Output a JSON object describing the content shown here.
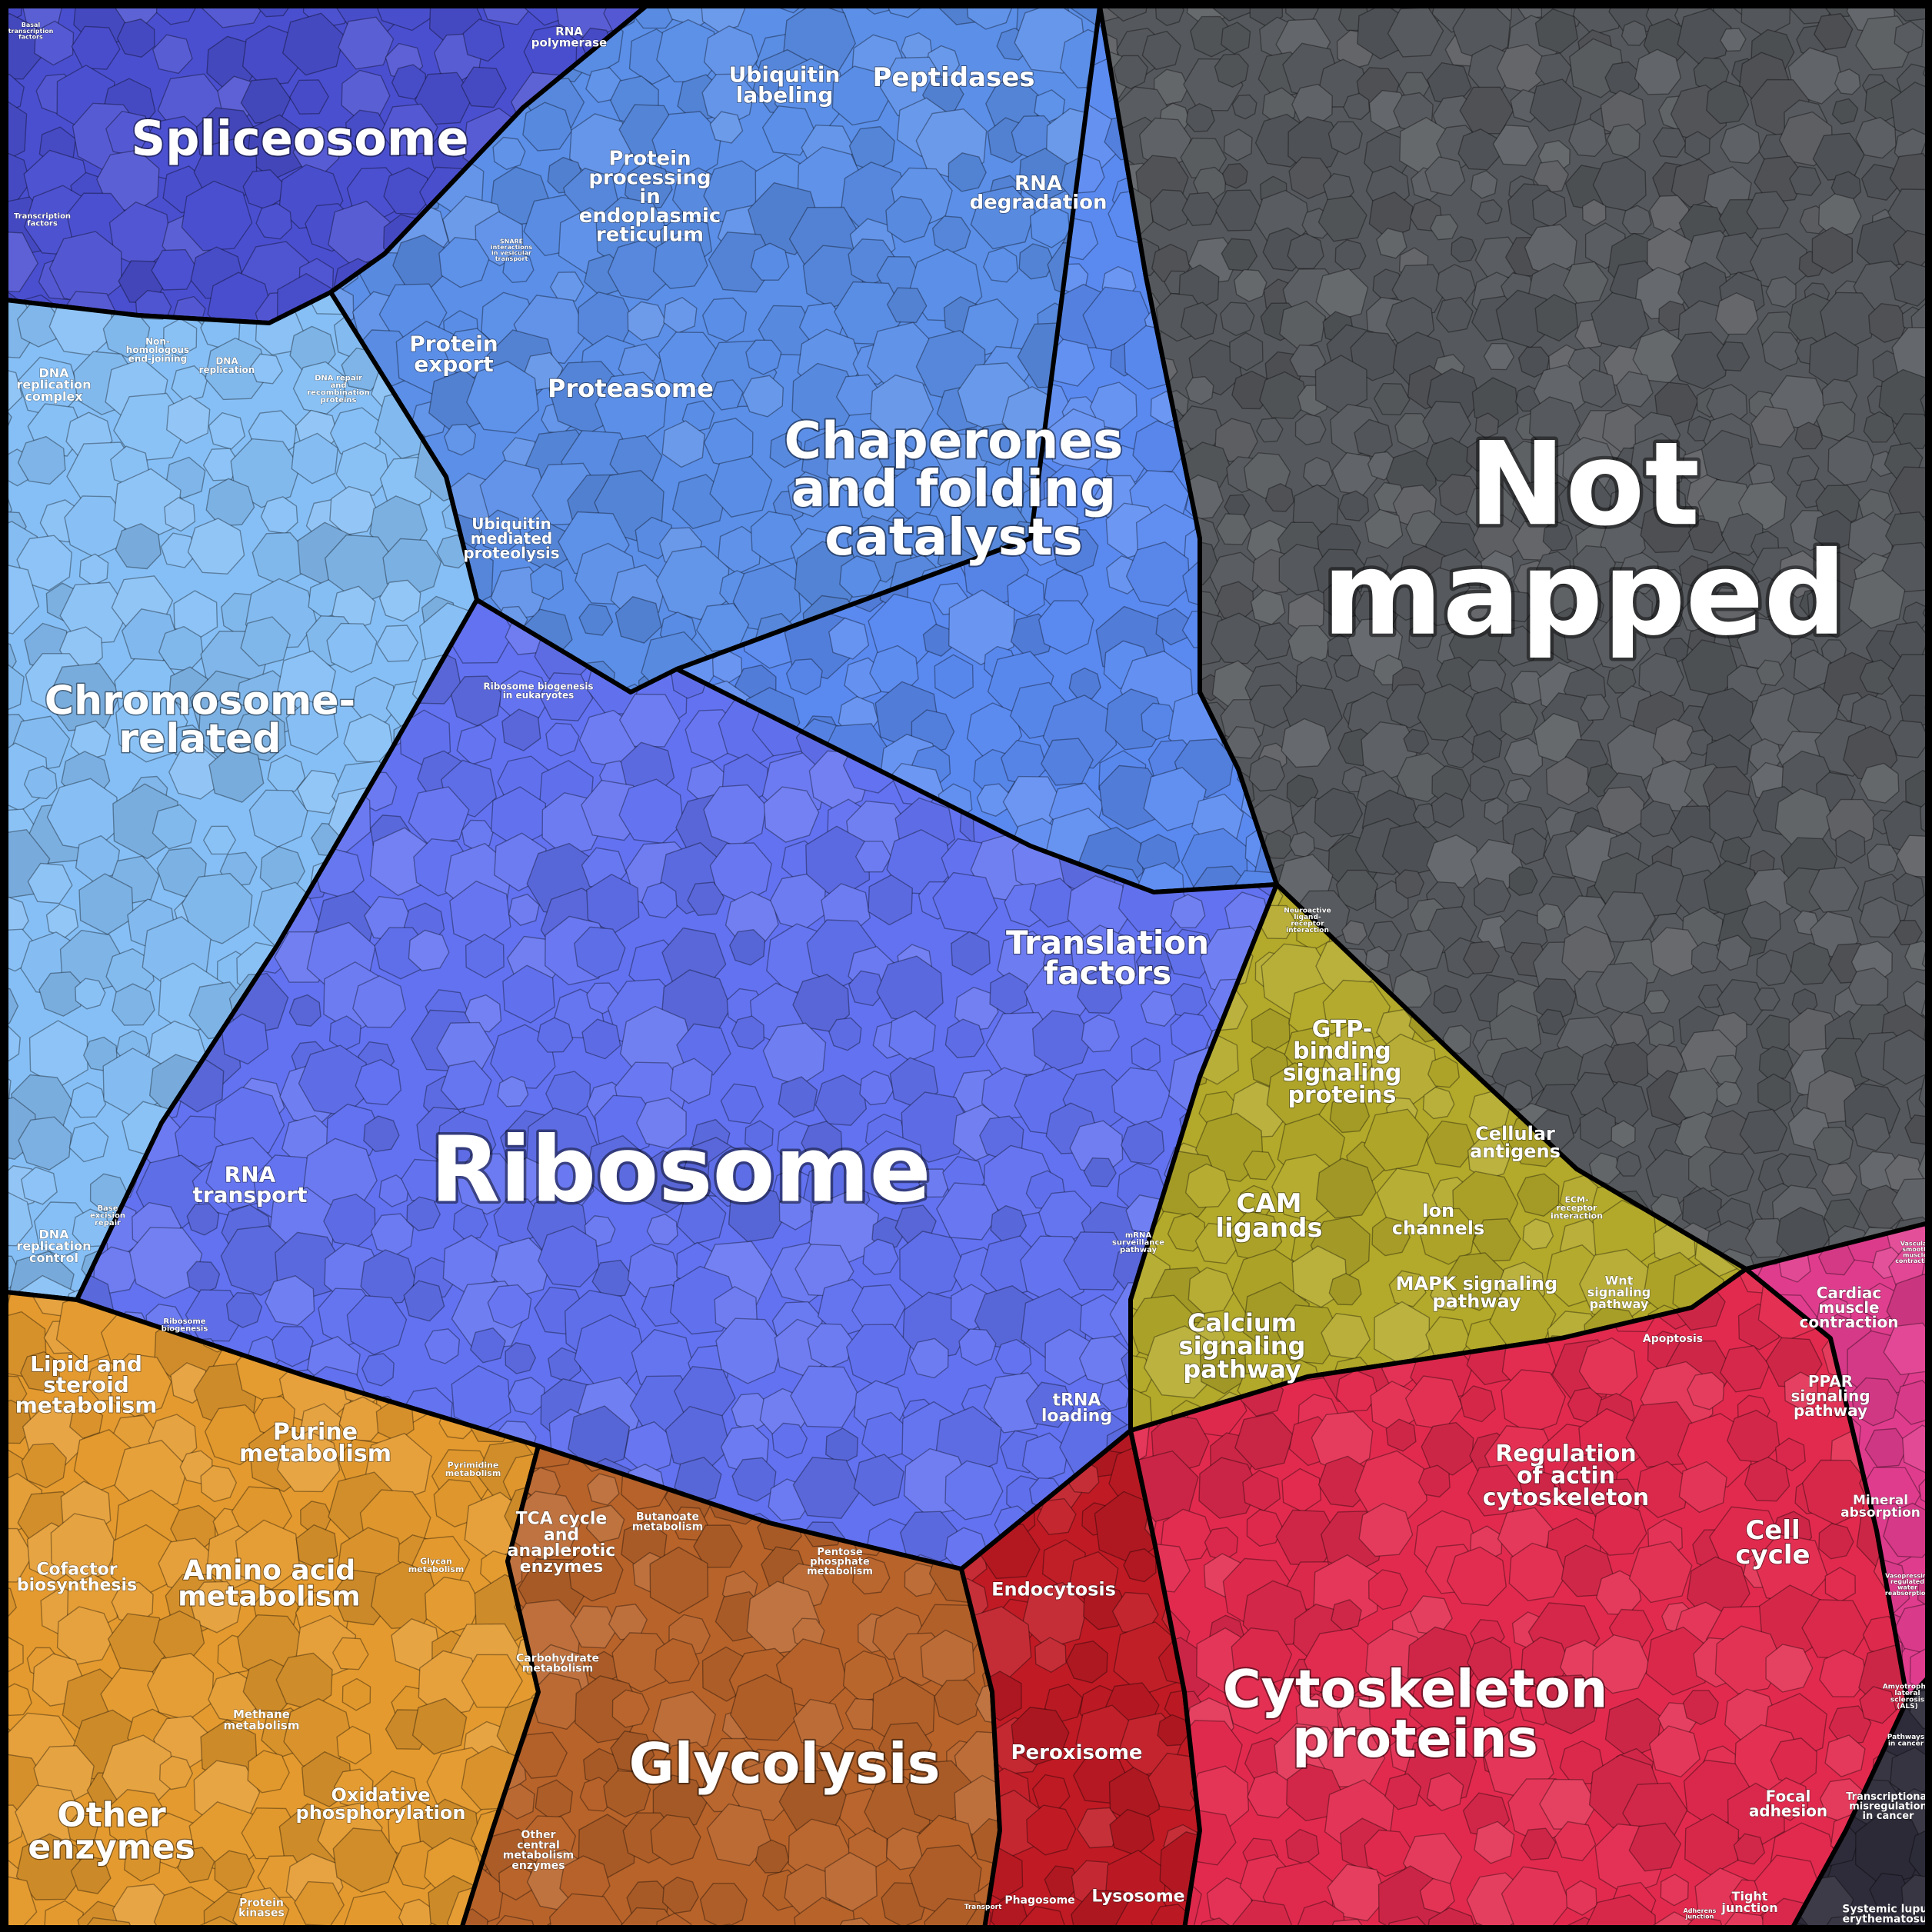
{
  "regions": [
    {
      "key": "spliceosome",
      "color": "#4a4fd0",
      "labels": [
        {
          "text": [
            "Spliceosome"
          ]
        },
        {
          "text": [
            "RNA",
            "polymerase"
          ]
        },
        {
          "text": [
            "Basal",
            "transcription",
            "factors"
          ]
        },
        {
          "text": [
            "Transcription",
            "factors"
          ]
        }
      ]
    },
    {
      "key": "upper-proteins",
      "color": "#5b8fe8",
      "labels": [
        {
          "text": [
            "Ubiquitin",
            "labeling"
          ]
        },
        {
          "text": [
            "Peptidases"
          ]
        },
        {
          "text": [
            "RNA",
            "degradation"
          ]
        },
        {
          "text": [
            "Protein",
            "processing",
            "in",
            "endoplasmic",
            "reticulum"
          ]
        },
        {
          "text": [
            "SNARE",
            "interactions",
            "in vesicular",
            "transport"
          ]
        },
        {
          "text": [
            "Protein",
            "export"
          ]
        },
        {
          "text": [
            "Proteasome"
          ]
        },
        {
          "text": [
            "Ubiquitin",
            "mediated",
            "proteolysis"
          ]
        }
      ]
    },
    {
      "key": "chaperones",
      "color": "#5a8af0",
      "labels": [
        {
          "text": [
            "Chaperones",
            "and folding",
            "catalysts"
          ]
        }
      ]
    },
    {
      "key": "not-mapped",
      "color": "#55585c",
      "labels": [
        {
          "text": [
            "Not",
            "mapped"
          ]
        }
      ]
    },
    {
      "key": "chromosome",
      "color": "#86bff5",
      "labels": [
        {
          "text": [
            "Chromosome-",
            "related"
          ]
        },
        {
          "text": [
            "DNA",
            "replication",
            "complex"
          ]
        },
        {
          "text": [
            "Non-",
            "homologous",
            "end-joining"
          ]
        },
        {
          "text": [
            "DNA",
            "replication"
          ]
        },
        {
          "text": [
            "DNA repair",
            "and",
            "recombination",
            "proteins"
          ]
        },
        {
          "text": [
            "DNA",
            "replication",
            "control"
          ]
        },
        {
          "text": [
            "Base",
            "excision",
            "repair"
          ]
        }
      ]
    },
    {
      "key": "ribosome",
      "color": "#6272f0",
      "labels": [
        {
          "text": [
            "Ribosome"
          ]
        },
        {
          "text": [
            "Ribosome biogenesis",
            "in eukaryotes"
          ]
        },
        {
          "text": [
            "RNA",
            "transport"
          ]
        },
        {
          "text": [
            "Ribosome",
            "biogenesis"
          ]
        },
        {
          "text": [
            "Translation",
            "factors"
          ]
        },
        {
          "text": [
            "mRNA",
            "surveillance",
            "pathway"
          ]
        },
        {
          "text": [
            "tRNA",
            "loading"
          ]
        }
      ]
    },
    {
      "key": "signaling",
      "color": "#b3a92a",
      "labels": [
        {
          "text": [
            "GTP-",
            "binding",
            "signaling",
            "proteins"
          ]
        },
        {
          "text": [
            "Cellular",
            "antigens"
          ]
        },
        {
          "text": [
            "CAM",
            "ligands"
          ]
        },
        {
          "text": [
            "Ion",
            "channels"
          ]
        },
        {
          "text": [
            "ECM-",
            "receptor",
            "interaction"
          ]
        },
        {
          "text": [
            "Neuroactive",
            "ligand-",
            "receptor",
            "interaction"
          ]
        },
        {
          "text": [
            "MAPK signaling",
            "pathway"
          ]
        },
        {
          "text": [
            "Wnt",
            "signaling",
            "pathway"
          ]
        },
        {
          "text": [
            "Calcium",
            "signaling",
            "pathway"
          ]
        }
      ]
    },
    {
      "key": "metabolism",
      "color": "#e49a2e",
      "labels": [
        {
          "text": [
            "Lipid and",
            "steroid",
            "metabolism"
          ]
        },
        {
          "text": [
            "Purine",
            "metabolism"
          ]
        },
        {
          "text": [
            "Pyrimidine",
            "metabolism"
          ]
        },
        {
          "text": [
            "Cofactor",
            "biosynthesis"
          ]
        },
        {
          "text": [
            "Amino acid",
            "metabolism"
          ]
        },
        {
          "text": [
            "Glycan",
            "metabolism"
          ]
        },
        {
          "text": [
            "Other",
            "enzymes"
          ]
        },
        {
          "text": [
            "Methane",
            "metabolism"
          ]
        },
        {
          "text": [
            "Oxidative",
            "phosphorylation"
          ]
        },
        {
          "text": [
            "Protein",
            "kinases"
          ]
        }
      ]
    },
    {
      "key": "carbohydrate",
      "color": "#b8632a",
      "labels": [
        {
          "text": [
            "TCA cycle",
            "and",
            "anaplerotic",
            "enzymes"
          ]
        },
        {
          "text": [
            "Butanoate",
            "metabolism"
          ]
        },
        {
          "text": [
            "Pentose",
            "phosphate",
            "metabolism"
          ]
        },
        {
          "text": [
            "Carbohydrate",
            "metabolism"
          ]
        },
        {
          "text": [
            "Glycolysis"
          ]
        },
        {
          "text": [
            "Other",
            "central",
            "metabolism",
            "enzymes"
          ]
        }
      ]
    },
    {
      "key": "vesicles",
      "color": "#c01a24",
      "labels": [
        {
          "text": [
            "Endocytosis"
          ]
        },
        {
          "text": [
            "Peroxisome"
          ]
        },
        {
          "text": [
            "Phagosome"
          ]
        },
        {
          "text": [
            "Lysosome"
          ]
        },
        {
          "text": [
            "Transport"
          ]
        }
      ]
    },
    {
      "key": "cytoskeleton",
      "color": "#e22a4e",
      "labels": [
        {
          "text": [
            "Cytoskeleton",
            "proteins"
          ]
        },
        {
          "text": [
            "Regulation",
            "of actin",
            "cytoskeleton"
          ]
        },
        {
          "text": [
            "Apoptosis"
          ]
        },
        {
          "text": [
            "Cell",
            "cycle"
          ]
        },
        {
          "text": [
            "Focal",
            "adhesion"
          ]
        },
        {
          "text": [
            "Tight",
            "junction"
          ]
        },
        {
          "text": [
            "Adherens",
            "junction"
          ]
        }
      ]
    },
    {
      "key": "pink",
      "color": "#e03c8e",
      "labels": [
        {
          "text": [
            "Cardiac",
            "muscle",
            "contraction"
          ]
        },
        {
          "text": [
            "PPAR",
            "signaling",
            "pathway"
          ]
        },
        {
          "text": [
            "Mineral",
            "absorption"
          ]
        },
        {
          "text": [
            "Vascular",
            "smooth",
            "muscle",
            "contraction"
          ]
        },
        {
          "text": [
            "Vasopressin-",
            "regulated",
            "water",
            "reabsorption"
          ]
        }
      ]
    },
    {
      "key": "disease",
      "color": "#2e2c3a",
      "labels": [
        {
          "text": [
            "Amyotrophic",
            "lateral",
            "sclerosis",
            "(ALS)"
          ]
        },
        {
          "text": [
            "Pathways",
            "in cancer"
          ]
        },
        {
          "text": [
            "Transcriptional",
            "misregulation",
            "in cancer"
          ]
        },
        {
          "text": [
            "Systemic lupus",
            "erythematosus"
          ]
        }
      ]
    }
  ]
}
